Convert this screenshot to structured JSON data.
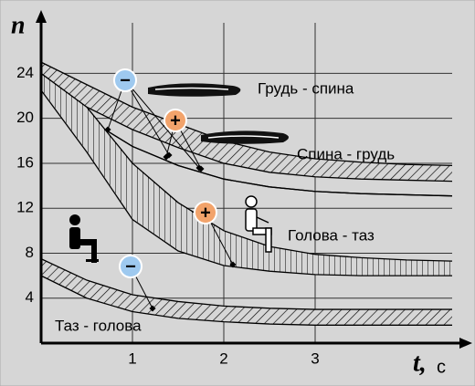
{
  "chart_data": {
    "type": "band",
    "y_label": "n",
    "x_label": "t,",
    "x_unit": "с",
    "x": [
      0,
      0.5,
      1,
      1.5,
      2,
      2.5,
      3,
      3.5,
      4,
      4.5
    ],
    "xlim": [
      0,
      4.5
    ],
    "ylim": [
      0,
      28.5
    ],
    "xticks": [
      1,
      2,
      3
    ],
    "yticks": [
      4,
      8,
      12,
      16,
      20,
      24
    ],
    "grid": true,
    "series": [
      {
        "name": "Грудь - спина",
        "hatch": "diagonal",
        "upper": [
          25,
          23,
          21,
          19.5,
          18,
          17,
          16.4,
          16.1,
          15.9,
          15.8
        ],
        "lower": [
          23.5,
          21,
          19,
          17.4,
          16,
          15.2,
          14.8,
          14.6,
          14.5,
          14.4
        ]
      },
      {
        "name": "Спина - грудь",
        "hatch": "none",
        "upper": [
          23,
          20,
          17.5,
          15.8,
          14.6,
          13.9,
          13.5,
          13.3,
          13.2,
          13.1
        ],
        "lower": [
          23,
          20,
          17.5,
          15.8,
          14.6,
          13.9,
          13.5,
          13.3,
          13.2,
          13.1
        ]
      },
      {
        "name": "Голова - таз",
        "hatch": "vertical",
        "upper": [
          24,
          21,
          16,
          12.5,
          10,
          8.6,
          7.9,
          7.6,
          7.4,
          7.3
        ],
        "lower": [
          22.5,
          17,
          11,
          8.2,
          6.9,
          6.4,
          6.1,
          6,
          6,
          6
        ]
      },
      {
        "name": "Таз - голова",
        "hatch": "diagonal",
        "upper": [
          7.5,
          5.6,
          4.3,
          3.7,
          3.3,
          3.1,
          3,
          3,
          3,
          3
        ],
        "lower": [
          6,
          4,
          2.8,
          2.2,
          1.9,
          1.7,
          1.6,
          1.6,
          1.6,
          1.6
        ]
      }
    ],
    "annotations": [
      {
        "text": "−",
        "color": "#9ec9ef"
      },
      {
        "text": "+",
        "color": "#f2a36b"
      },
      {
        "text": "+",
        "color": "#f2a36b"
      },
      {
        "text": "−",
        "color": "#9ec9ef"
      }
    ]
  }
}
